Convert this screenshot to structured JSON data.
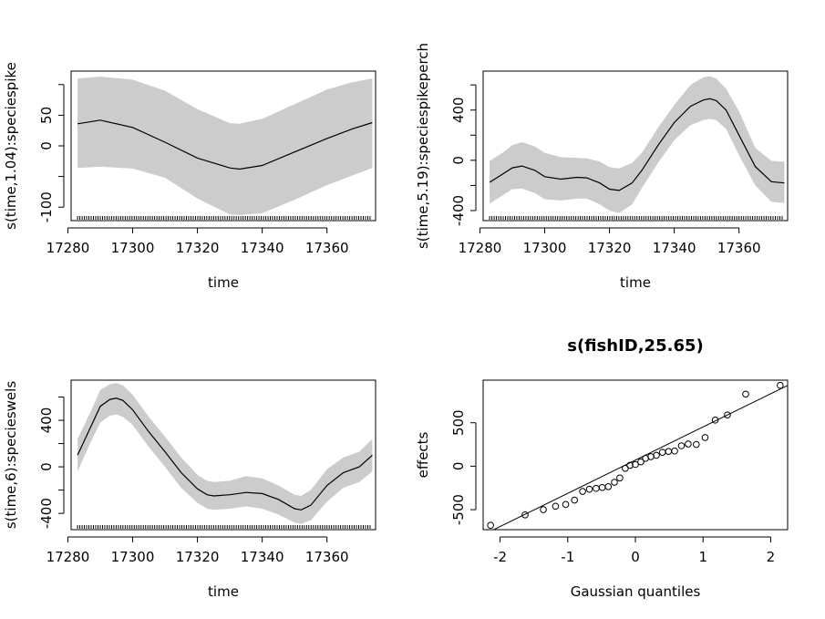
{
  "chart_data": [
    {
      "type": "line",
      "title": "",
      "xlabel": "time",
      "ylabel": "s(time,1.04):speciespike",
      "xlim": [
        17281,
        17375
      ],
      "ylim": [
        -122,
        122
      ],
      "x_ticks": [
        17280,
        17300,
        17320,
        17340,
        17360
      ],
      "y_ticks": [
        -100,
        0,
        50
      ],
      "y_minor_ticks": [
        -50,
        100
      ],
      "band": "confidence interval (grey)",
      "series": [
        {
          "x": [
            17283,
            17290,
            17300,
            17310,
            17320,
            17330,
            17333,
            17340,
            17350,
            17360,
            17368,
            17374
          ],
          "y": [
            36,
            42,
            30,
            6,
            -20,
            -36,
            -38,
            -32,
            -10,
            12,
            28,
            38
          ],
          "upper": [
            110,
            113,
            108,
            90,
            60,
            37,
            36,
            44,
            68,
            92,
            104,
            110
          ],
          "lower": [
            -36,
            -34,
            -37,
            -52,
            -86,
            -112,
            -113,
            -110,
            -88,
            -64,
            -48,
            -36
          ]
        }
      ],
      "rug": "x data positions"
    },
    {
      "type": "line",
      "title": "",
      "xlabel": "time",
      "ylabel": "s(time,5.19):speciespikeperch",
      "xlim": [
        17281,
        17375
      ],
      "ylim": [
        -480,
        710
      ],
      "x_ticks": [
        17280,
        17300,
        17320,
        17340,
        17360
      ],
      "y_ticks": [
        -400,
        0,
        400
      ],
      "y_minor_ticks": [
        -200,
        200,
        600
      ],
      "band": "confidence interval (grey)",
      "series": [
        {
          "x": [
            17283,
            17287,
            17290,
            17293,
            17297,
            17300,
            17305,
            17310,
            17313,
            17317,
            17320,
            17323,
            17327,
            17330,
            17335,
            17340,
            17345,
            17349,
            17351,
            17353,
            17356,
            17360,
            17365,
            17370,
            17374
          ],
          "y": [
            -175,
            -110,
            -60,
            -45,
            -80,
            -130,
            -150,
            -135,
            -140,
            -180,
            -230,
            -240,
            -180,
            -80,
            120,
            300,
            430,
            480,
            490,
            475,
            400,
            200,
            -50,
            -170,
            -180
          ],
          "upper": [
            -5,
            60,
            120,
            145,
            110,
            60,
            25,
            20,
            15,
            -10,
            -55,
            -65,
            -20,
            60,
            260,
            440,
            600,
            660,
            670,
            650,
            570,
            390,
            100,
            -5,
            -10
          ],
          "lower": [
            -345,
            -280,
            -230,
            -225,
            -260,
            -310,
            -320,
            -305,
            -305,
            -350,
            -400,
            -420,
            -350,
            -220,
            -20,
            160,
            280,
            320,
            330,
            320,
            250,
            40,
            -200,
            -330,
            -340
          ]
        }
      ],
      "rug": "x data positions"
    },
    {
      "type": "line",
      "title": "",
      "xlabel": "time",
      "ylabel": "s(time,6):specieswels",
      "xlim": [
        17281,
        17375
      ],
      "ylim": [
        -540,
        745
      ],
      "x_ticks": [
        17280,
        17300,
        17320,
        17340,
        17360
      ],
      "y_ticks": [
        -400,
        0,
        400
      ],
      "y_minor_ticks": [
        -200,
        200,
        600
      ],
      "band": "confidence interval (grey)",
      "series": [
        {
          "x": [
            17283,
            17287,
            17290,
            17293,
            17295,
            17297,
            17300,
            17305,
            17310,
            17315,
            17320,
            17323,
            17325,
            17330,
            17335,
            17340,
            17345,
            17350,
            17352,
            17355,
            17360,
            17365,
            17370,
            17374
          ],
          "y": [
            100,
            340,
            520,
            580,
            590,
            570,
            490,
            300,
            130,
            -50,
            -190,
            -240,
            -250,
            -240,
            -220,
            -230,
            -280,
            -360,
            -370,
            -330,
            -160,
            -50,
            0,
            100
          ],
          "upper": [
            240,
            470,
            660,
            710,
            720,
            700,
            620,
            430,
            260,
            80,
            -70,
            -120,
            -130,
            -120,
            -80,
            -100,
            -160,
            -240,
            -250,
            -200,
            -20,
            80,
            130,
            240
          ],
          "lower": [
            -40,
            210,
            380,
            440,
            450,
            430,
            360,
            170,
            0,
            -180,
            -310,
            -360,
            -370,
            -360,
            -340,
            -360,
            -410,
            -480,
            -490,
            -460,
            -300,
            -180,
            -130,
            -40
          ]
        }
      ],
      "rug": "x data positions"
    },
    {
      "type": "scatter",
      "title": "s(fishID,25.65)",
      "xlabel": "Gaussian quantiles",
      "ylabel": "effects",
      "xlim": [
        -2.25,
        2.25
      ],
      "ylim": [
        -730,
        990
      ],
      "x_ticks": [
        -2,
        -1,
        0,
        1,
        2
      ],
      "y_ticks": [
        -500,
        0,
        500
      ],
      "reference_line": {
        "slope": 382,
        "intercept": 70
      },
      "series": [
        {
          "x": [
            -2.14,
            -1.63,
            -1.36,
            -1.18,
            -1.03,
            -0.9,
            -0.78,
            -0.68,
            -0.58,
            -0.49,
            -0.4,
            -0.31,
            -0.23,
            -0.15,
            -0.08,
            0,
            0.08,
            0.15,
            0.23,
            0.31,
            0.4,
            0.49,
            0.58,
            0.68,
            0.78,
            0.9,
            1.03,
            1.18,
            1.36,
            1.63,
            2.14
          ],
          "y": [
            -680,
            -560,
            -500,
            -460,
            -440,
            -390,
            -290,
            -265,
            -255,
            -245,
            -235,
            -185,
            -135,
            -25,
            10,
            20,
            50,
            90,
            110,
            125,
            160,
            170,
            175,
            235,
            255,
            250,
            330,
            530,
            590,
            830,
            930
          ]
        }
      ]
    }
  ]
}
